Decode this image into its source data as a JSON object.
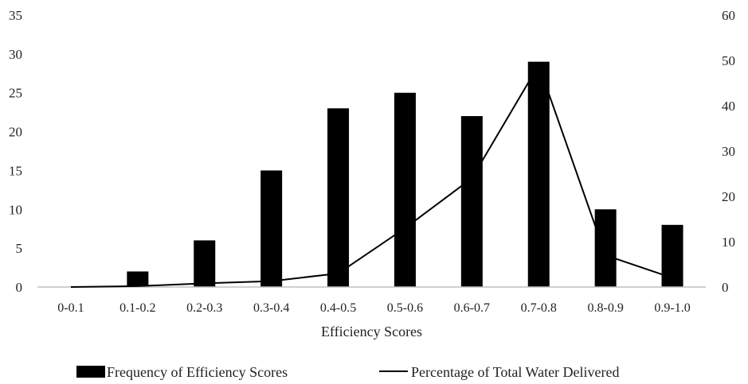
{
  "chart_data": {
    "type": "bar",
    "categories": [
      "0-0.1",
      "0.1-0.2",
      "0.2-0.3",
      "0.3-0.4",
      "0.4-0.5",
      "0.5-0.6",
      "0.6-0.7",
      "0.7-0.8",
      "0.8-0.9",
      "0.9-1.0"
    ],
    "series": [
      {
        "name": "Frequency of Efficiency Scores",
        "type": "bar",
        "axis": "left",
        "color": "#000000",
        "values": [
          0,
          2,
          6,
          15,
          23,
          25,
          22,
          29,
          10,
          8
        ]
      },
      {
        "name": "Percentage of Total Water Delivered",
        "type": "line",
        "axis": "right",
        "color": "#000000",
        "values": [
          0,
          0.2,
          0.8,
          1.3,
          3,
          13,
          24,
          49,
          7,
          2
        ]
      }
    ],
    "xlabel": "Efficiency Scores",
    "ylim_left": [
      0,
      35
    ],
    "yticks_left": [
      "0",
      "5",
      "10",
      "15",
      "20",
      "25",
      "30",
      "35"
    ],
    "ylim_right": [
      0,
      60
    ],
    "yticks_right": [
      "0",
      "10",
      "20",
      "30",
      "40",
      "50",
      "60"
    ],
    "grid": false,
    "legend_position": "bottom"
  }
}
